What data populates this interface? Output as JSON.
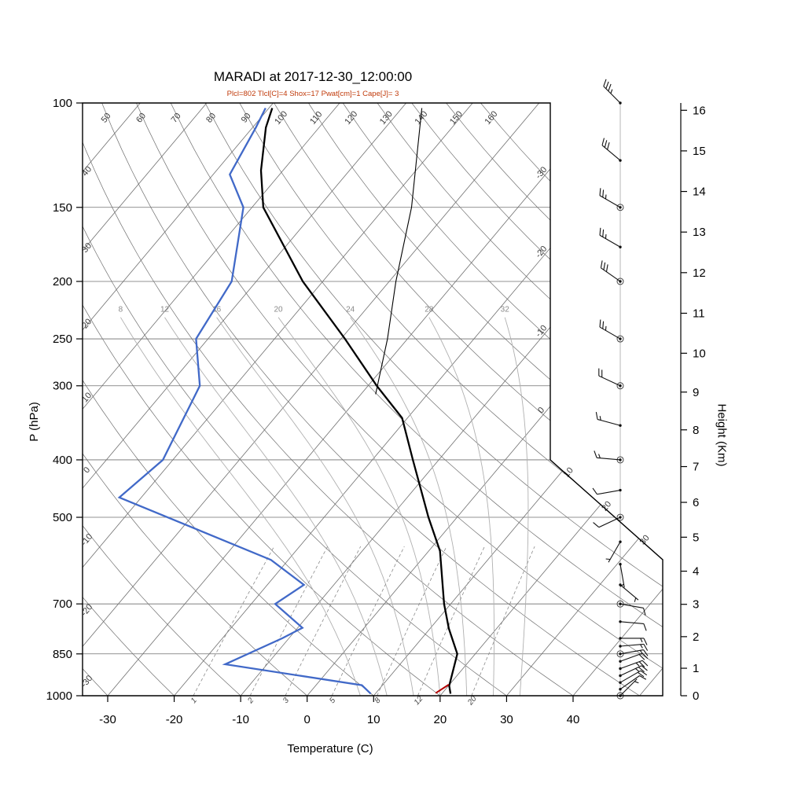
{
  "colors": {
    "subtitle": "#c03a0a",
    "background_lines": "#6f6f6f",
    "moist_adiabat": "#b0b0b0",
    "mixing_ratio": "#8a8a8a",
    "outline": "#000000"
  },
  "chart_data": {
    "type": "line",
    "variant": "skew-t-log-p-sounding",
    "title": "MARADI at 2017-12-30_12:00:00",
    "subtitle": "Plcl=802 Tlcl[C]=4 Shox=17 Pwat[cm]=1 Cape[J]= 3",
    "xlabel": "Temperature (C)",
    "ylabel": "P (hPa)",
    "y2label": "Height (Km)",
    "pressure_ticks": [
      100,
      150,
      200,
      250,
      300,
      400,
      500,
      700,
      850,
      1000
    ],
    "temp_ticks": [
      -30,
      -20,
      -10,
      0,
      10,
      20,
      30,
      40
    ],
    "height_ticks_km": [
      0,
      1,
      2,
      3,
      4,
      5,
      6,
      7,
      8,
      9,
      10,
      11,
      12,
      13,
      14,
      15,
      16
    ],
    "isotherms": {
      "min": -120,
      "max": 50,
      "step": 10
    },
    "isotherm_labels_right_edge": [
      -30,
      -20,
      -10,
      0
    ],
    "isotherm_labels_cut_edge": [
      10,
      20,
      30
    ],
    "dry_adiabats": [
      -30,
      -20,
      -10,
      0,
      10,
      20,
      30,
      40,
      50,
      60,
      70,
      80,
      90,
      100,
      110,
      120,
      130,
      140,
      150,
      160
    ],
    "dry_adiabat_labels_left_edge": [
      40,
      30,
      20,
      10,
      0,
      -10,
      -20,
      -30
    ],
    "dry_adiabat_labels_top_edge": [
      50,
      60,
      70,
      80,
      90,
      100,
      110,
      120,
      130,
      140,
      150,
      160
    ],
    "moist_adiabats": [
      8,
      12,
      16,
      20,
      24,
      28,
      32
    ],
    "mixing_ratio_lines": [
      1,
      2,
      3,
      5,
      8,
      12,
      20
    ],
    "series": {
      "temperature": {
        "name": "temperature",
        "color": "#000000",
        "width": 2.3,
        "points": [
          [
            992,
            21.3
          ],
          [
            962,
            20.1
          ],
          [
            850,
            17.3
          ],
          [
            770,
            12.8
          ],
          [
            700,
            9.0
          ],
          [
            570,
            1.7
          ],
          [
            500,
            -4.3
          ],
          [
            400,
            -13.9
          ],
          [
            340,
            -20.8
          ],
          [
            300,
            -28.7
          ],
          [
            250,
            -39.4
          ],
          [
            200,
            -53.0
          ],
          [
            150,
            -68.3
          ],
          [
            130,
            -73.3
          ],
          [
            110,
            -78.0
          ],
          [
            102,
            -79.5
          ]
        ]
      },
      "dewpoint": {
        "name": "dewpoint",
        "color": "#4169c8",
        "width": 2.3,
        "points": [
          [
            992,
            9.3
          ],
          [
            960,
            6.9
          ],
          [
            885,
            -16.3
          ],
          [
            800,
            -11.0
          ],
          [
            768,
            -9.3
          ],
          [
            700,
            -16.4
          ],
          [
            650,
            -14.5
          ],
          [
            590,
            -22.6
          ],
          [
            463,
            -53.3
          ],
          [
            400,
            -51.5
          ],
          [
            300,
            -55.3
          ],
          [
            250,
            -61.8
          ],
          [
            200,
            -63.7
          ],
          [
            150,
            -71.3
          ],
          [
            132,
            -77.5
          ],
          [
            110,
            -79.5
          ],
          [
            102,
            -80.5
          ]
        ]
      },
      "secondary_profile": {
        "name": "secondary-profile",
        "color": "#000000",
        "width": 1.1,
        "points": [
          [
            310,
            -27.8
          ],
          [
            250,
            -33.0
          ],
          [
            200,
            -39.0
          ],
          [
            150,
            -46.0
          ],
          [
            102,
            -57.0
          ]
        ]
      },
      "parcel_surface": {
        "name": "parcel-surface-segment",
        "color": "#b40000",
        "width": 2.0,
        "points": [
          [
            990,
            19.0
          ],
          [
            958,
            19.9
          ]
        ]
      }
    },
    "winds": [
      [
        1000,
        45,
        5
      ],
      [
        975,
        55,
        10
      ],
      [
        950,
        60,
        20
      ],
      [
        925,
        65,
        25
      ],
      [
        900,
        70,
        25
      ],
      [
        875,
        70,
        20
      ],
      [
        850,
        80,
        15
      ],
      [
        825,
        85,
        15
      ],
      [
        800,
        90,
        15
      ],
      [
        750,
        95,
        10
      ],
      [
        700,
        100,
        10
      ],
      [
        650,
        130,
        5
      ],
      [
        600,
        170,
        5
      ],
      [
        550,
        210,
        5
      ],
      [
        500,
        245,
        10
      ],
      [
        450,
        260,
        10
      ],
      [
        400,
        275,
        15
      ],
      [
        350,
        285,
        15
      ],
      [
        300,
        295,
        20
      ],
      [
        250,
        300,
        25
      ],
      [
        200,
        305,
        30
      ],
      [
        175,
        300,
        25
      ],
      [
        150,
        300,
        25
      ],
      [
        125,
        310,
        30
      ],
      [
        100,
        315,
        35
      ]
    ],
    "wind_mandatory_levels": [
      1000,
      850,
      700,
      500,
      400,
      300,
      250,
      200,
      150
    ]
  }
}
